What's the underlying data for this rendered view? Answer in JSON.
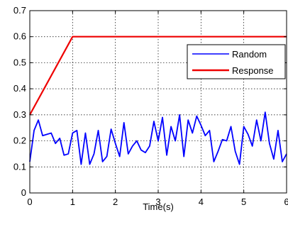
{
  "chart_data": {
    "type": "line",
    "title": "",
    "xlabel": "Time(s)",
    "ylabel": "",
    "xlim": [
      0,
      6
    ],
    "ylim": [
      0,
      0.7
    ],
    "x_ticks": [
      "0",
      "1",
      "2",
      "3",
      "4",
      "5",
      "6"
    ],
    "y_ticks": [
      "0",
      "0.1",
      "0.2",
      "0.3",
      "0.4",
      "0.5",
      "0.6",
      "0.7"
    ],
    "grid": true,
    "legend_position": "top-right",
    "series": [
      {
        "name": "Random",
        "color": "#0000ff",
        "x": [
          0,
          0.1,
          0.2,
          0.3,
          0.4,
          0.5,
          0.6,
          0.7,
          0.8,
          0.9,
          1.0,
          1.1,
          1.2,
          1.3,
          1.4,
          1.5,
          1.6,
          1.7,
          1.8,
          1.9,
          2.0,
          2.1,
          2.2,
          2.3,
          2.4,
          2.5,
          2.6,
          2.7,
          2.8,
          2.9,
          3.0,
          3.1,
          3.2,
          3.3,
          3.4,
          3.5,
          3.6,
          3.7,
          3.8,
          3.9,
          4.0,
          4.1,
          4.2,
          4.3,
          4.4,
          4.5,
          4.6,
          4.7,
          4.8,
          4.9,
          5.0,
          5.1,
          5.2,
          5.3,
          5.4,
          5.5,
          5.6,
          5.7,
          5.8,
          5.9,
          6.0
        ],
        "y": [
          0.12,
          0.24,
          0.28,
          0.22,
          0.225,
          0.23,
          0.19,
          0.21,
          0.145,
          0.15,
          0.23,
          0.24,
          0.11,
          0.23,
          0.11,
          0.15,
          0.24,
          0.12,
          0.14,
          0.245,
          0.19,
          0.14,
          0.27,
          0.15,
          0.18,
          0.2,
          0.165,
          0.155,
          0.18,
          0.275,
          0.2,
          0.29,
          0.145,
          0.255,
          0.2,
          0.3,
          0.14,
          0.28,
          0.23,
          0.295,
          0.26,
          0.22,
          0.24,
          0.12,
          0.16,
          0.205,
          0.2,
          0.255,
          0.16,
          0.11,
          0.255,
          0.225,
          0.18,
          0.28,
          0.2,
          0.31,
          0.19,
          0.13,
          0.24,
          0.12,
          0.15
        ]
      },
      {
        "name": "Response",
        "color": "#ee0000",
        "x": [
          0,
          1,
          6
        ],
        "y": [
          0.3,
          0.6,
          0.6
        ]
      }
    ]
  }
}
